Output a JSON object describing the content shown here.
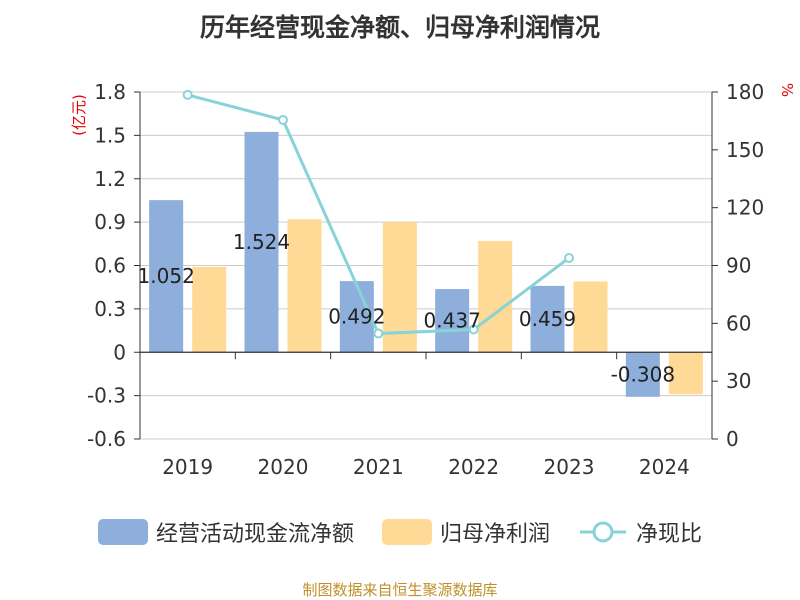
{
  "title": "历年经营现金净额、归母净利润情况",
  "source_note": "制图数据来自恒生聚源数据库",
  "colors": {
    "cash_flow": "#8eaedc",
    "net_profit": "#ffd996",
    "ratio": "#87d3d8",
    "grid": "#cccccc",
    "axis": "#333333",
    "unit": "#e60000"
  },
  "chart_data": {
    "type": "bar",
    "categories": [
      "2019",
      "2020",
      "2021",
      "2022",
      "2023",
      "2024"
    ],
    "series": [
      {
        "name": "经营活动现金流净额",
        "type": "bar",
        "axis": "left",
        "values": [
          1.052,
          1.524,
          0.492,
          0.437,
          0.459,
          -0.308
        ],
        "labels": [
          "1.052",
          "1.524",
          "0.492",
          "0.437",
          "0.459",
          "-0.308"
        ]
      },
      {
        "name": "归母净利润",
        "type": "bar",
        "axis": "left",
        "values": [
          0.59,
          0.92,
          0.9,
          0.77,
          0.49,
          -0.29
        ]
      },
      {
        "name": "净现比",
        "type": "line",
        "axis": "right",
        "values": [
          178.5,
          165.5,
          54.7,
          56.8,
          93.9,
          null
        ]
      }
    ],
    "y_left": {
      "label": "(亿元)",
      "min": -0.6,
      "max": 1.8,
      "ticks": [
        "1.8",
        "1.5",
        "1.2",
        "0.9",
        "0.6",
        "0.3",
        "0",
        "-0.3",
        "-0.6"
      ]
    },
    "y_right": {
      "label": "%",
      "min": 0,
      "max": 180,
      "ticks": [
        "180",
        "150",
        "120",
        "90",
        "60",
        "30",
        "0"
      ]
    },
    "grid": true,
    "legend_position": "bottom"
  }
}
